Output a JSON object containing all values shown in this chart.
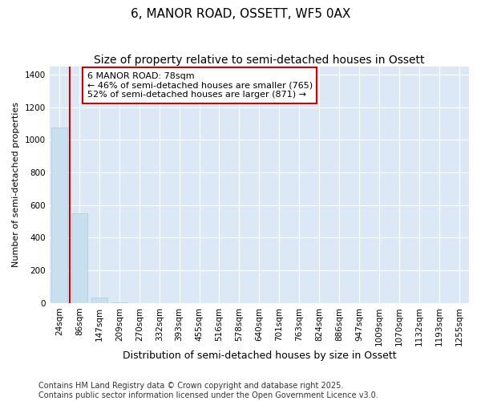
{
  "title": "6, MANOR ROAD, OSSETT, WF5 0AX",
  "subtitle": "Size of property relative to semi-detached houses in Ossett",
  "xlabel": "Distribution of semi-detached houses by size in Ossett",
  "ylabel": "Number of semi-detached properties",
  "categories": [
    "24sqm",
    "86sqm",
    "147sqm",
    "209sqm",
    "270sqm",
    "332sqm",
    "393sqm",
    "455sqm",
    "516sqm",
    "578sqm",
    "640sqm",
    "701sqm",
    "763sqm",
    "824sqm",
    "886sqm",
    "947sqm",
    "1009sqm",
    "1070sqm",
    "1132sqm",
    "1193sqm",
    "1255sqm"
  ],
  "values": [
    1075,
    550,
    35,
    5,
    0,
    0,
    0,
    0,
    0,
    0,
    0,
    0,
    0,
    0,
    0,
    0,
    0,
    0,
    0,
    0,
    0
  ],
  "bar_color": "#c8dff0",
  "bar_edge_color": "#aaccdd",
  "subject_line_color": "#cc0000",
  "annotation_text": "6 MANOR ROAD: 78sqm\n← 46% of semi-detached houses are smaller (765)\n52% of semi-detached houses are larger (871) →",
  "annotation_box_edge_color": "#cc0000",
  "ylim": [
    0,
    1450
  ],
  "yticks": [
    0,
    200,
    400,
    600,
    800,
    1000,
    1200,
    1400
  ],
  "figure_bg_color": "#ffffff",
  "plot_bg_color": "#dce8f5",
  "grid_color": "#ffffff",
  "footer_text": "Contains HM Land Registry data © Crown copyright and database right 2025.\nContains public sector information licensed under the Open Government Licence v3.0.",
  "title_fontsize": 11,
  "subtitle_fontsize": 10,
  "xlabel_fontsize": 9,
  "ylabel_fontsize": 8,
  "tick_fontsize": 7.5,
  "annotation_fontsize": 8,
  "footer_fontsize": 7
}
